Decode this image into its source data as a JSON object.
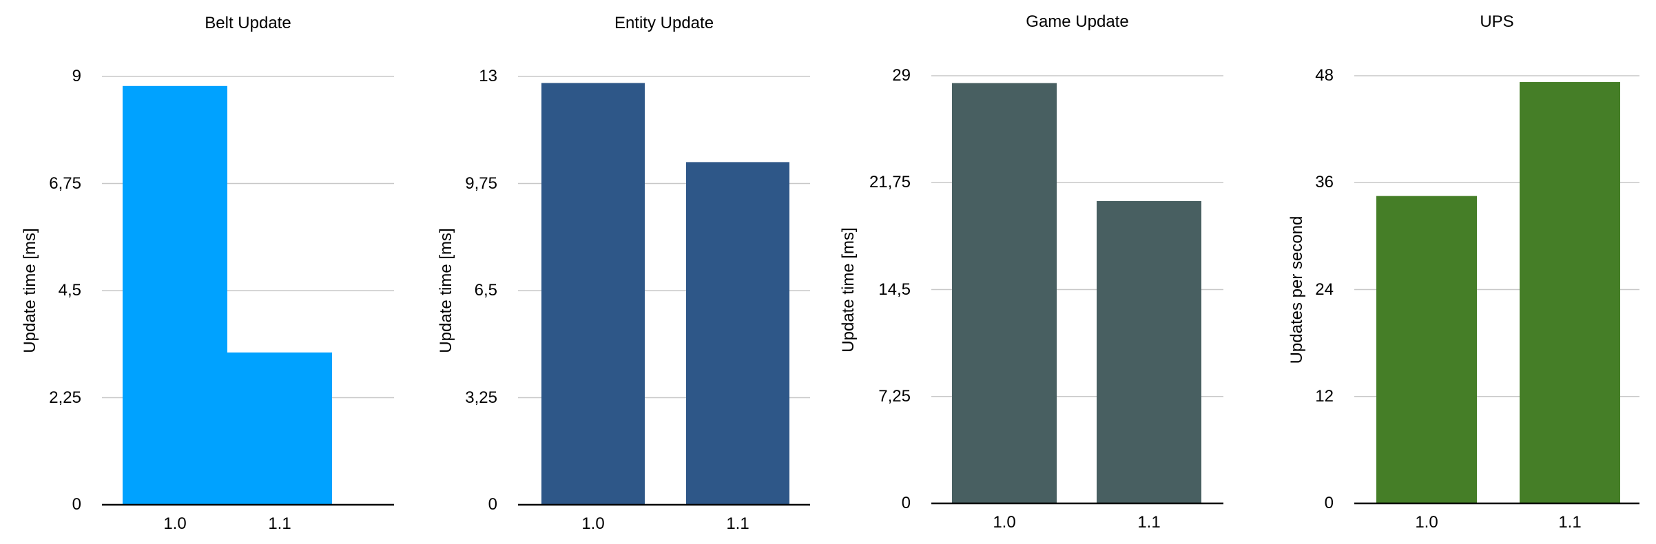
{
  "chart_data": [
    {
      "type": "bar",
      "title": "Belt Update",
      "ylabel": "Update time [ms]",
      "xlabel": "",
      "categories": [
        "1.0",
        "1.1"
      ],
      "values": [
        8.8,
        3.2
      ],
      "ylim": [
        0,
        9
      ],
      "yticks": [
        "0",
        "2,25",
        "4,5",
        "6,75",
        "9"
      ],
      "color": "#00a2ff",
      "grid": true
    },
    {
      "type": "bar",
      "title": "Entity Update",
      "ylabel": "Update time [ms]",
      "xlabel": "",
      "categories": [
        "1.0",
        "1.1"
      ],
      "values": [
        12.8,
        10.4
      ],
      "ylim": [
        0,
        13
      ],
      "yticks": [
        "0",
        "3,25",
        "6,5",
        "9,75",
        "13"
      ],
      "color": "#2e5788",
      "grid": true
    },
    {
      "type": "bar",
      "title": "Game Update",
      "ylabel": "Update time [ms]",
      "xlabel": "",
      "categories": [
        "1.0",
        "1.1"
      ],
      "values": [
        28.5,
        20.5
      ],
      "ylim": [
        0,
        29
      ],
      "yticks": [
        "0",
        "7,25",
        "14,5",
        "21,75",
        "29"
      ],
      "color": "#485f61",
      "grid": true
    },
    {
      "type": "bar",
      "title": "UPS",
      "ylabel": "Updates per second",
      "xlabel": "",
      "categories": [
        "1.0",
        "1.1"
      ],
      "values": [
        34.5,
        47.3
      ],
      "ylim": [
        0,
        48
      ],
      "yticks": [
        "0",
        "12",
        "24",
        "36",
        "48"
      ],
      "color": "#457e27",
      "grid": true
    }
  ]
}
